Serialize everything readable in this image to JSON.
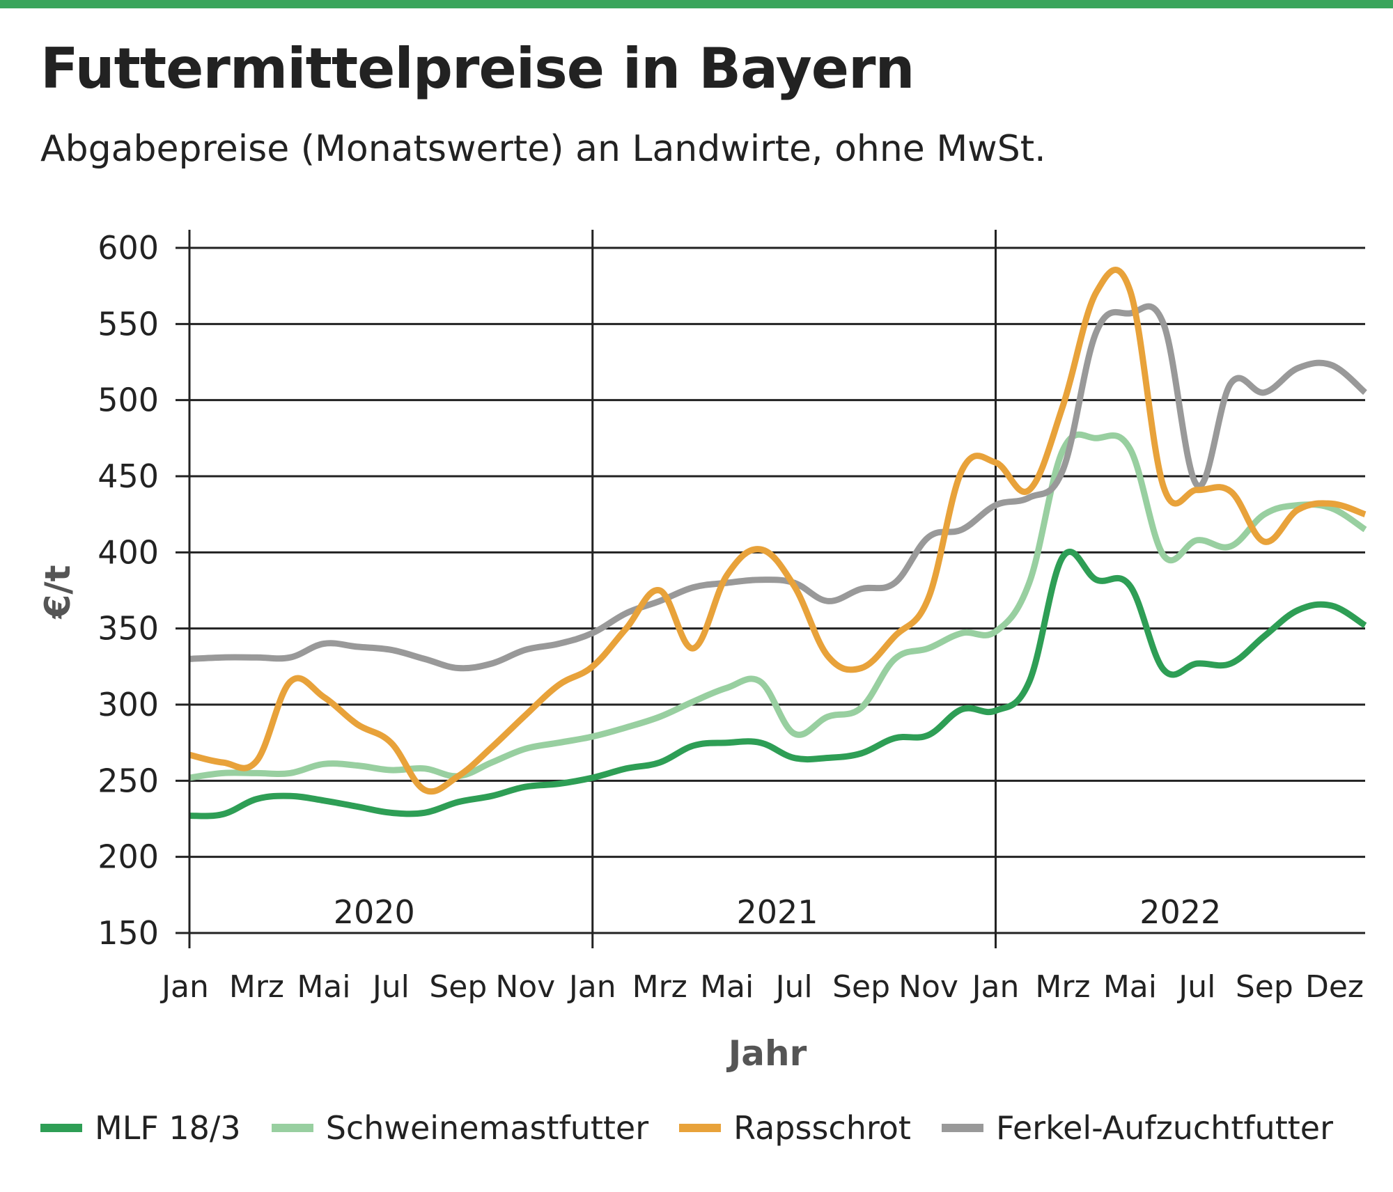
{
  "title": "Futtermittelpreise in Bayern",
  "subtitle": "Abgabepreise (Monatswerte) an Landwirte, ohne MwSt.",
  "colors": {
    "accent_bar": "#3aa55c"
  },
  "chart_data": {
    "type": "line",
    "xlabel": "Jahr",
    "ylabel": "€/t",
    "ylim": [
      150,
      600
    ],
    "yticks": [
      150,
      200,
      250,
      300,
      350,
      400,
      450,
      500,
      550,
      600
    ],
    "year_labels": [
      "2020",
      "2021",
      "2022"
    ],
    "month_tick_labels": [
      "Jan",
      "Mrz",
      "Mai",
      "Jul",
      "Sep",
      "Nov",
      "Jan",
      "Mrz",
      "Mai",
      "Jul",
      "Sep",
      "Nov",
      "Jan",
      "Mrz",
      "Mai",
      "Jul",
      "Sep",
      "Dez"
    ],
    "x": [
      "2020-01",
      "2020-02",
      "2020-03",
      "2020-04",
      "2020-05",
      "2020-06",
      "2020-07",
      "2020-08",
      "2020-09",
      "2020-10",
      "2020-11",
      "2020-12",
      "2021-01",
      "2021-02",
      "2021-03",
      "2021-04",
      "2021-05",
      "2021-06",
      "2021-07",
      "2021-08",
      "2021-09",
      "2021-10",
      "2021-11",
      "2021-12",
      "2022-01",
      "2022-02",
      "2022-03",
      "2022-04",
      "2022-05",
      "2022-06",
      "2022-07",
      "2022-08",
      "2022-09",
      "2022-10",
      "2022-11",
      "2022-12"
    ],
    "grid": true,
    "legend_position": "bottom",
    "series": [
      {
        "name": "MLF 18/3",
        "color": "#2e9e55",
        "values": [
          227,
          228,
          238,
          240,
          237,
          233,
          229,
          229,
          236,
          240,
          246,
          248,
          252,
          258,
          262,
          273,
          275,
          275,
          265,
          265,
          268,
          278,
          280,
          297,
          296,
          315,
          397,
          382,
          378,
          323,
          327,
          327,
          345,
          362,
          365,
          352
        ]
      },
      {
        "name": "Schweinemastfutter",
        "color": "#98cfa0",
        "values": [
          252,
          255,
          255,
          255,
          261,
          260,
          257,
          258,
          253,
          262,
          271,
          275,
          279,
          285,
          292,
          302,
          311,
          315,
          281,
          292,
          298,
          330,
          337,
          347,
          348,
          380,
          467,
          475,
          468,
          398,
          408,
          404,
          425,
          431,
          429,
          415
        ]
      },
      {
        "name": "Rapsschrot",
        "color": "#e8a23a",
        "values": [
          267,
          262,
          263,
          315,
          305,
          287,
          275,
          244,
          253,
          272,
          293,
          313,
          325,
          350,
          375,
          337,
          385,
          402,
          378,
          332,
          324,
          345,
          370,
          454,
          459,
          441,
          496,
          571,
          572,
          443,
          441,
          440,
          407,
          428,
          432,
          425
        ]
      },
      {
        "name": "Ferkel-Aufzuchtfutter",
        "color": "#999999",
        "values": [
          330,
          331,
          331,
          331,
          340,
          338,
          336,
          330,
          324,
          327,
          336,
          340,
          347,
          360,
          368,
          377,
          380,
          382,
          380,
          368,
          376,
          380,
          410,
          415,
          431,
          436,
          454,
          545,
          557,
          550,
          444,
          511,
          505,
          521,
          523,
          505
        ]
      }
    ]
  }
}
